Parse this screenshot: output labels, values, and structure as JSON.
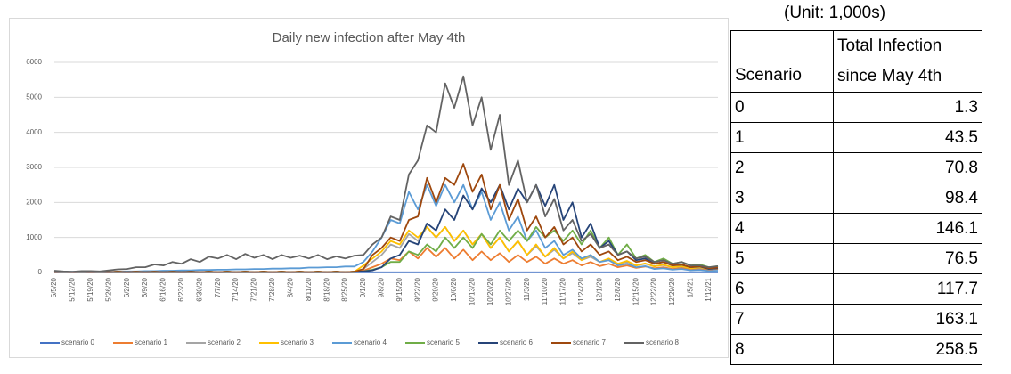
{
  "chart_data": {
    "type": "line",
    "title": "Daily new infection after May 4th",
    "categories": [
      "5/5/20",
      null,
      "5/12/20",
      null,
      "5/19/20",
      null,
      "5/26/20",
      null,
      "6/2/20",
      null,
      "6/9/20",
      null,
      "6/16/20",
      null,
      "6/23/20",
      null,
      "6/30/20",
      null,
      "7/7/20",
      null,
      "7/14/20",
      null,
      "7/21/20",
      null,
      "7/28/20",
      null,
      "8/4/20",
      null,
      "8/11/20",
      null,
      "8/18/20",
      null,
      "8/25/20",
      null,
      "9/1/20",
      null,
      "9/8/20",
      null,
      "9/15/20",
      null,
      "9/22/20",
      null,
      "9/29/20",
      null,
      "10/6/20",
      null,
      "10/13/20",
      null,
      "10/20/20",
      null,
      "10/27/20",
      null,
      "11/3/20",
      null,
      "11/10/20",
      null,
      "11/17/20",
      null,
      "11/24/20",
      null,
      "12/1/20",
      null,
      "12/8/20",
      null,
      "12/15/20",
      null,
      "12/22/20",
      null,
      "12/29/20",
      null,
      "1/5/21",
      null,
      "1/12/21",
      null
    ],
    "series": [
      {
        "name": "scenario 0",
        "color": "#4472c4",
        "values": [
          5,
          5,
          5,
          5,
          5,
          5,
          5,
          5,
          5,
          5,
          5,
          5,
          5,
          5,
          5,
          5,
          5,
          5,
          5,
          5,
          5,
          5,
          5,
          5,
          5,
          5,
          5,
          5,
          5,
          5,
          5,
          5,
          5,
          5,
          5,
          5,
          5,
          5,
          5,
          5,
          5,
          5,
          5,
          5,
          5,
          5,
          5,
          5,
          5,
          5,
          5,
          5,
          5,
          5,
          5,
          5,
          5,
          5,
          5,
          5,
          5,
          5,
          5,
          5,
          5,
          5,
          5,
          5,
          5,
          5,
          5,
          5,
          5,
          5
        ]
      },
      {
        "name": "scenario 1",
        "color": "#ed7d31",
        "values": [
          10,
          20,
          10,
          20,
          10,
          20,
          10,
          20,
          10,
          20,
          10,
          20,
          10,
          20,
          10,
          20,
          10,
          20,
          10,
          20,
          10,
          20,
          10,
          20,
          10,
          20,
          10,
          20,
          10,
          20,
          10,
          20,
          10,
          20,
          50,
          150,
          250,
          400,
          350,
          600,
          400,
          700,
          450,
          700,
          400,
          650,
          350,
          600,
          350,
          550,
          300,
          500,
          300,
          450,
          250,
          400,
          250,
          350,
          200,
          300,
          180,
          250,
          150,
          200,
          130,
          170,
          120,
          150,
          100,
          130,
          90,
          110,
          80,
          100
        ]
      },
      {
        "name": "scenario 2",
        "color": "#a5a5a5",
        "values": [
          10,
          20,
          10,
          20,
          10,
          20,
          10,
          20,
          10,
          20,
          10,
          20,
          10,
          20,
          10,
          20,
          10,
          20,
          10,
          20,
          10,
          20,
          10,
          20,
          10,
          20,
          10,
          20,
          10,
          20,
          10,
          20,
          10,
          20,
          100,
          300,
          500,
          800,
          700,
          1100,
          900,
          1300,
          1000,
          1300,
          900,
          1200,
          800,
          1100,
          700,
          1000,
          600,
          900,
          500,
          750,
          450,
          650,
          400,
          550,
          350,
          450,
          300,
          380,
          250,
          300,
          200,
          250,
          180,
          210,
          150,
          170,
          120,
          140,
          100,
          110
        ]
      },
      {
        "name": "scenario 3",
        "color": "#ffc000",
        "values": [
          10,
          20,
          10,
          20,
          10,
          20,
          10,
          20,
          10,
          20,
          10,
          20,
          10,
          20,
          10,
          20,
          10,
          20,
          10,
          20,
          10,
          20,
          10,
          20,
          10,
          20,
          10,
          20,
          10,
          20,
          10,
          20,
          10,
          20,
          200,
          400,
          600,
          900,
          800,
          1200,
          1000,
          1300,
          1000,
          1300,
          900,
          1200,
          800,
          1100,
          700,
          1000,
          600,
          900,
          500,
          800,
          450,
          700,
          400,
          600,
          350,
          500,
          300,
          400,
          250,
          330,
          200,
          260,
          170,
          220,
          150,
          180,
          120,
          150,
          100,
          120
        ]
      },
      {
        "name": "scenario 4",
        "color": "#5b9bd5",
        "values": [
          20,
          20,
          20,
          20,
          20,
          20,
          20,
          20,
          30,
          30,
          40,
          40,
          50,
          50,
          60,
          60,
          70,
          70,
          80,
          80,
          90,
          90,
          100,
          100,
          110,
          110,
          120,
          120,
          140,
          140,
          150,
          150,
          170,
          170,
          300,
          600,
          1000,
          1500,
          1400,
          2300,
          1800,
          2500,
          1900,
          2500,
          2000,
          2500,
          1800,
          2300,
          1500,
          2000,
          1200,
          1600,
          900,
          1200,
          700,
          900,
          500,
          650,
          400,
          500,
          300,
          350,
          200,
          250,
          150,
          180,
          100,
          120,
          80,
          100,
          60,
          70,
          40,
          50
        ]
      },
      {
        "name": "scenario 5",
        "color": "#70ad47",
        "values": [
          10,
          20,
          10,
          20,
          10,
          20,
          10,
          20,
          10,
          20,
          10,
          20,
          10,
          20,
          10,
          20,
          10,
          20,
          10,
          20,
          10,
          20,
          10,
          20,
          10,
          20,
          10,
          20,
          10,
          20,
          10,
          20,
          10,
          20,
          30,
          80,
          150,
          300,
          300,
          600,
          500,
          800,
          600,
          1000,
          700,
          1000,
          700,
          1100,
          800,
          1200,
          900,
          1200,
          900,
          1300,
          1000,
          1200,
          900,
          1200,
          800,
          1200,
          700,
          1000,
          500,
          800,
          400,
          500,
          300,
          400,
          250,
          300,
          200,
          230,
          150,
          180
        ]
      },
      {
        "name": "scenario 6",
        "color": "#264478",
        "values": [
          10,
          20,
          10,
          20,
          10,
          20,
          10,
          20,
          10,
          20,
          10,
          20,
          10,
          20,
          10,
          20,
          10,
          20,
          10,
          20,
          10,
          20,
          10,
          20,
          10,
          20,
          10,
          20,
          10,
          20,
          10,
          20,
          10,
          20,
          30,
          60,
          150,
          400,
          500,
          900,
          800,
          1400,
          1200,
          1800,
          1500,
          2200,
          1800,
          2400,
          2000,
          2500,
          1800,
          2400,
          2000,
          2500,
          1900,
          2500,
          1500,
          2000,
          1000,
          1400,
          700,
          900,
          500,
          600,
          350,
          400,
          250,
          300,
          200,
          220,
          150,
          170,
          100,
          120
        ]
      },
      {
        "name": "scenario 7",
        "color": "#9e480e",
        "values": [
          10,
          20,
          10,
          20,
          10,
          20,
          10,
          20,
          10,
          20,
          10,
          20,
          10,
          20,
          10,
          20,
          10,
          20,
          10,
          20,
          10,
          20,
          10,
          20,
          10,
          20,
          10,
          20,
          10,
          20,
          10,
          20,
          10,
          20,
          100,
          500,
          700,
          1000,
          900,
          1500,
          1600,
          2700,
          2000,
          2700,
          2500,
          3100,
          2300,
          2800,
          1800,
          2500,
          1500,
          2100,
          1200,
          1600,
          1000,
          1300,
          800,
          1000,
          600,
          800,
          500,
          600,
          350,
          450,
          300,
          350,
          250,
          300,
          200,
          230,
          150,
          180,
          120,
          140
        ]
      },
      {
        "name": "scenario 8",
        "color": "#636363",
        "values": [
          50,
          30,
          20,
          40,
          40,
          30,
          60,
          90,
          100,
          150,
          150,
          230,
          200,
          300,
          250,
          380,
          300,
          450,
          400,
          500,
          380,
          530,
          420,
          500,
          380,
          500,
          420,
          480,
          400,
          500,
          380,
          460,
          400,
          480,
          500,
          800,
          1000,
          1600,
          1500,
          2800,
          3200,
          4200,
          4000,
          5400,
          4700,
          5600,
          4200,
          5000,
          3500,
          4500,
          2500,
          3200,
          2000,
          2500,
          1600,
          2100,
          1200,
          1500,
          900,
          1100,
          700,
          800,
          500,
          600,
          400,
          450,
          300,
          350,
          250,
          300,
          200,
          200,
          150,
          180
        ]
      }
    ],
    "ylim": [
      0,
      6000
    ],
    "yticks": [
      0,
      1000,
      2000,
      3000,
      4000,
      5000,
      6000
    ],
    "grid": true,
    "legend": "bottom"
  },
  "table": {
    "caption": "(Unit: 1,000s)",
    "header": [
      "Scenario",
      "Total Infection since May 4th"
    ],
    "rows": [
      [
        0,
        1.3
      ],
      [
        1,
        43.5
      ],
      [
        2,
        70.8
      ],
      [
        3,
        98.4
      ],
      [
        4,
        146.1
      ],
      [
        5,
        76.5
      ],
      [
        6,
        117.7
      ],
      [
        7,
        163.1
      ],
      [
        8,
        258.5
      ]
    ]
  }
}
